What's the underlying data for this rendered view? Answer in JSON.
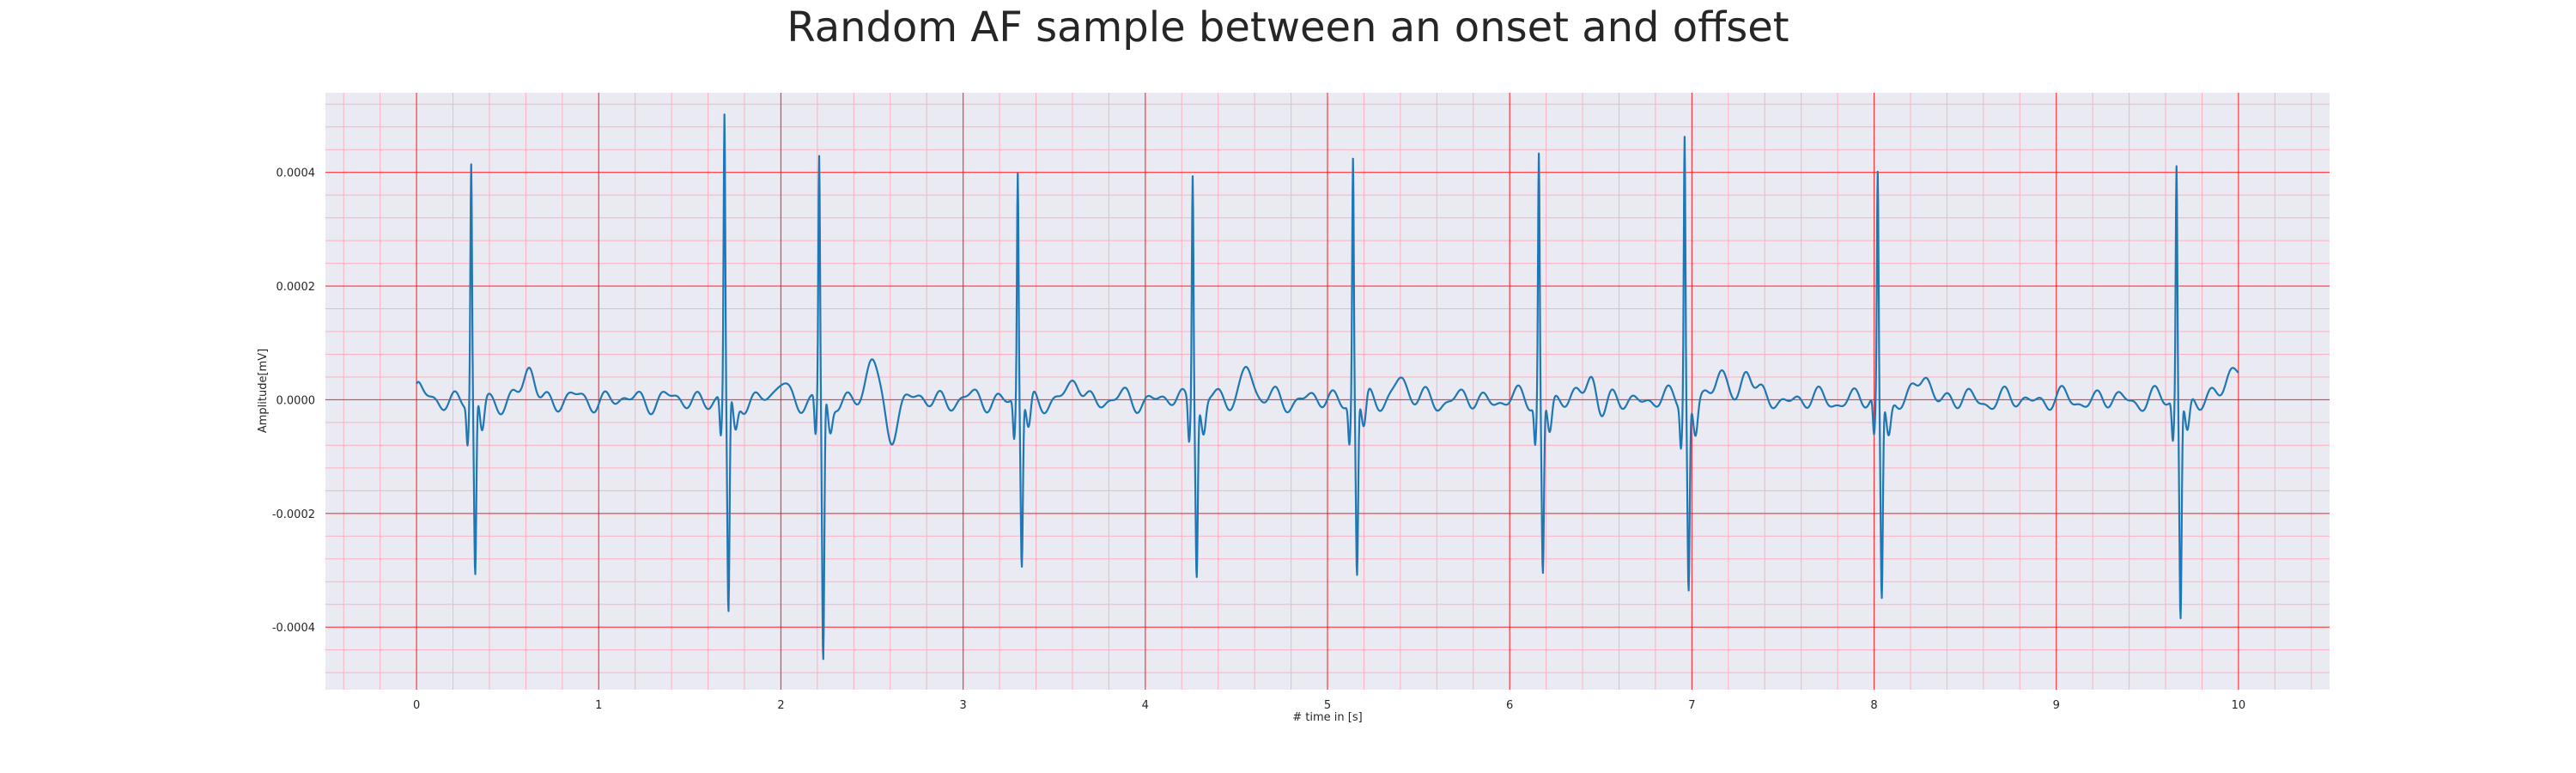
{
  "chart_data": {
    "type": "line",
    "title": "Random AF sample between an onset and offset",
    "xlabel": "# time in [s]",
    "ylabel": "Amplitude[mV]",
    "xlim": [
      -0.5,
      10.5
    ],
    "ylim": [
      -0.00051,
      0.00054
    ],
    "x_ticks": [
      0,
      1,
      2,
      3,
      4,
      5,
      6,
      7,
      8,
      9,
      10
    ],
    "x_tick_labels": [
      "0",
      "1",
      "2",
      "3",
      "4",
      "5",
      "6",
      "7",
      "8",
      "9",
      "10"
    ],
    "y_ticks": [
      -0.0004,
      -0.0002,
      0.0,
      0.0002,
      0.0004
    ],
    "y_tick_labels": [
      "-0.0004",
      "-0.0002",
      "0.0000",
      "0.0002",
      "0.0004"
    ],
    "grid": true,
    "grid_major_color": "#ff0000",
    "grid_minor_color": "#ffb0c0",
    "background_color": "#eaeaf2",
    "line_color": "#1f77b4",
    "series": [
      {
        "beats": [
          {
            "t": 0.3,
            "r": 0.000415,
            "s": -0.000315
          },
          {
            "t": 1.69,
            "r": 0.000495,
            "s": -0.000385
          },
          {
            "t": 2.21,
            "r": 0.00042,
            "s": -0.00047
          },
          {
            "t": 3.3,
            "r": 0.0004,
            "s": -0.00029
          },
          {
            "t": 4.26,
            "r": 0.000412,
            "s": -0.000295
          },
          {
            "t": 5.14,
            "r": 0.00043,
            "s": -0.000305
          },
          {
            "t": 6.16,
            "r": 0.000435,
            "s": -0.000305
          },
          {
            "t": 6.96,
            "r": 0.000475,
            "s": -0.00033
          },
          {
            "t": 8.02,
            "r": 0.000393,
            "s": -0.00035
          },
          {
            "t": 9.66,
            "r": 0.000415,
            "s": -0.00038
          }
        ],
        "waves": [
          {
            "t": 0.62,
            "a": 5.5e-05
          },
          {
            "t": 2.0,
            "a": 3e-05
          },
          {
            "t": 2.5,
            "a": 7e-05
          },
          {
            "t": 2.6,
            "a": -6e-05
          },
          {
            "t": 3.62,
            "a": 3.5e-05
          },
          {
            "t": 4.56,
            "a": 6e-05
          },
          {
            "t": 5.4,
            "a": 4e-05
          },
          {
            "t": 6.45,
            "a": 6e-05
          },
          {
            "t": 6.5,
            "a": -3.5e-05
          },
          {
            "t": 7.15,
            "a": 5e-05
          },
          {
            "t": 7.3,
            "a": 6e-05
          },
          {
            "t": 8.28,
            "a": 5e-05
          },
          {
            "t": 9.96,
            "a": 5e-05
          }
        ],
        "t_start": 0.0,
        "t_end": 10.0,
        "start_value": 1.8e-05,
        "end_value": 4e-05
      }
    ]
  }
}
